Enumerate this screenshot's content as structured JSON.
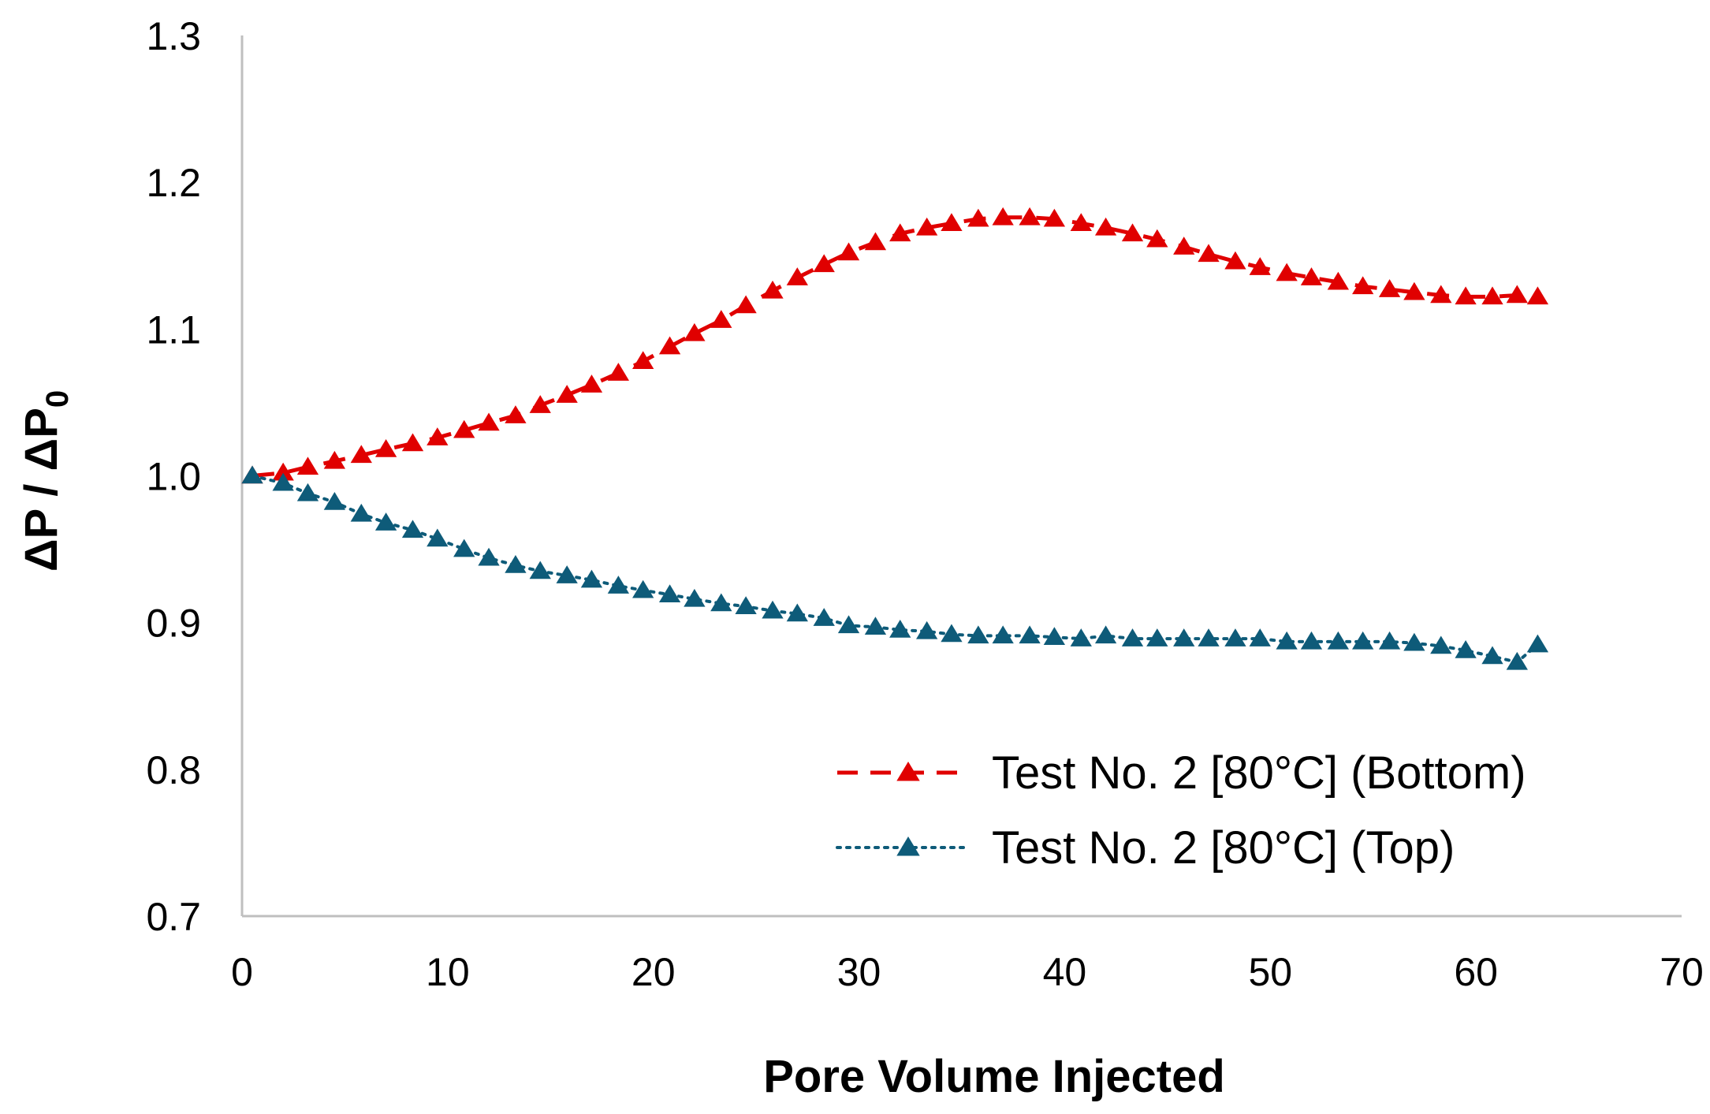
{
  "chart_data": {
    "type": "line",
    "title": "",
    "xlabel": "Pore Volume Injected",
    "ylabel": "ΔP / ΔP",
    "ylabel_subscript": "0",
    "xlim": [
      0,
      70
    ],
    "ylim": [
      0.7,
      1.3
    ],
    "x_ticks": [
      "0",
      "10",
      "20",
      "30",
      "40",
      "50",
      "60",
      "70"
    ],
    "y_ticks": [
      "0.7",
      "0.8",
      "0.9",
      "1.0",
      "1.1",
      "1.2",
      "1.3"
    ],
    "grid": false,
    "legend_position": "bottom-right",
    "series": [
      {
        "name": "Test No. 2 [80°C] (Bottom)",
        "color": "#e00000",
        "line_style": "dashed",
        "marker": "triangle",
        "x": [
          0.5,
          2,
          3.2,
          4.5,
          5.8,
          7,
          8.3,
          9.5,
          10.8,
          12,
          13.3,
          14.5,
          15.8,
          17,
          18.3,
          19.5,
          20.8,
          22,
          23.3,
          24.5,
          25.8,
          27,
          28.3,
          29.5,
          30.8,
          32,
          33.3,
          34.5,
          35.8,
          37,
          38.3,
          39.5,
          40.8,
          42,
          43.3,
          44.5,
          45.8,
          47,
          48.3,
          49.5,
          50.8,
          52,
          53.3,
          54.5,
          55.8,
          57,
          58.3,
          59.5,
          60.8,
          62,
          63
        ],
        "y": [
          1.0,
          1.002,
          1.006,
          1.01,
          1.014,
          1.018,
          1.022,
          1.026,
          1.031,
          1.036,
          1.041,
          1.048,
          1.055,
          1.062,
          1.07,
          1.078,
          1.088,
          1.097,
          1.106,
          1.116,
          1.126,
          1.135,
          1.144,
          1.152,
          1.159,
          1.165,
          1.169,
          1.172,
          1.175,
          1.176,
          1.176,
          1.175,
          1.172,
          1.169,
          1.165,
          1.161,
          1.156,
          1.151,
          1.146,
          1.142,
          1.138,
          1.135,
          1.132,
          1.129,
          1.127,
          1.125,
          1.123,
          1.122,
          1.122,
          1.123,
          1.122
        ]
      },
      {
        "name": "Test No. 2 [80°C] (Top)",
        "color": "#0e5b79",
        "line_style": "dotted",
        "marker": "triangle",
        "x": [
          0.5,
          2,
          3.2,
          4.5,
          5.8,
          7,
          8.3,
          9.5,
          10.8,
          12,
          13.3,
          14.5,
          15.8,
          17,
          18.3,
          19.5,
          20.8,
          22,
          23.3,
          24.5,
          25.8,
          27,
          28.3,
          29.5,
          30.8,
          32,
          33.3,
          34.5,
          35.8,
          37,
          38.3,
          39.5,
          40.8,
          42,
          43.3,
          44.5,
          45.8,
          47,
          48.3,
          49.5,
          50.8,
          52,
          53.3,
          54.5,
          55.8,
          57,
          58.3,
          59.5,
          60.8,
          62,
          63
        ],
        "y": [
          1.0,
          0.995,
          0.988,
          0.982,
          0.974,
          0.968,
          0.963,
          0.957,
          0.95,
          0.944,
          0.939,
          0.935,
          0.932,
          0.929,
          0.925,
          0.922,
          0.919,
          0.916,
          0.913,
          0.911,
          0.908,
          0.906,
          0.903,
          0.898,
          0.897,
          0.895,
          0.894,
          0.892,
          0.891,
          0.891,
          0.891,
          0.89,
          0.889,
          0.891,
          0.889,
          0.889,
          0.889,
          0.889,
          0.889,
          0.889,
          0.887,
          0.887,
          0.887,
          0.887,
          0.887,
          0.886,
          0.884,
          0.881,
          0.877,
          0.873,
          0.885
        ]
      }
    ]
  }
}
